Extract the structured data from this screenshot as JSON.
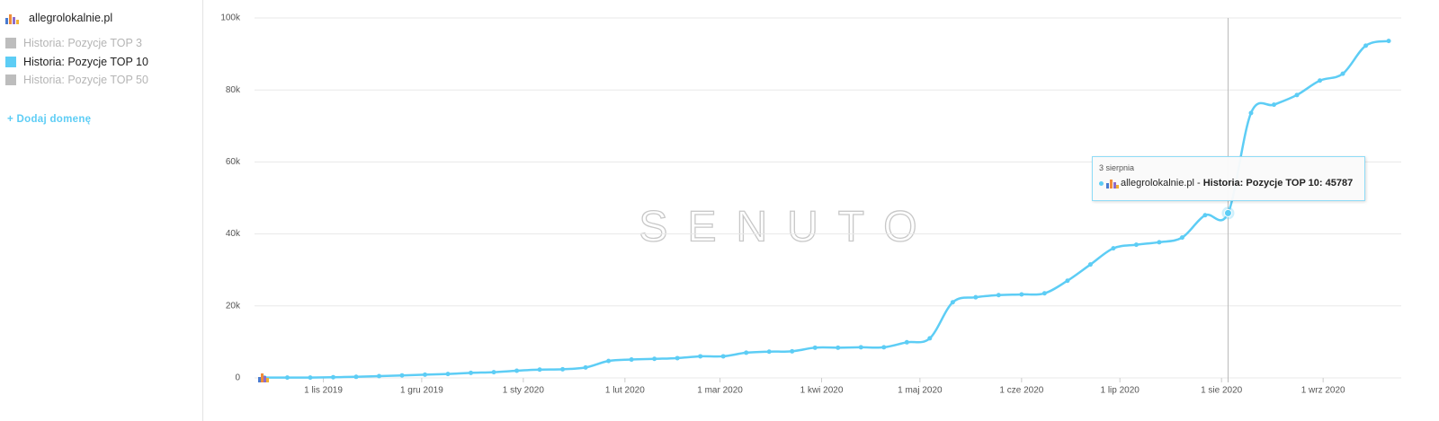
{
  "sidebar": {
    "domain": "allegrolokalnie.pl",
    "legend_top3": "Historia: Pozycje TOP 3",
    "legend_top50": "Historia: Pozycje TOP 50",
    "add_domain": "+ Dodaj domenę"
  },
  "watermark": "SENUTO",
  "tooltip": {
    "date": "3 sierpnia",
    "prefix": "allegrolokalnie.pl - ",
    "bold": "Historia: Pozycje TOP 10: 45787"
  },
  "chart_data": {
    "type": "line",
    "x": [
      "2019-10-14",
      "2019-10-21",
      "2019-10-28",
      "2019-11-04",
      "2019-11-11",
      "2019-11-18",
      "2019-11-25",
      "2019-12-02",
      "2019-12-09",
      "2019-12-16",
      "2019-12-23",
      "2019-12-30",
      "2020-01-06",
      "2020-01-13",
      "2020-01-20",
      "2020-01-27",
      "2020-02-03",
      "2020-02-10",
      "2020-02-17",
      "2020-02-24",
      "2020-03-02",
      "2020-03-09",
      "2020-03-16",
      "2020-03-23",
      "2020-03-30",
      "2020-04-06",
      "2020-04-13",
      "2020-04-20",
      "2020-04-27",
      "2020-05-04",
      "2020-05-11",
      "2020-05-18",
      "2020-05-25",
      "2020-06-01",
      "2020-06-08",
      "2020-06-15",
      "2020-06-22",
      "2020-06-29",
      "2020-07-06",
      "2020-07-13",
      "2020-07-20",
      "2020-07-27",
      "2020-08-03",
      "2020-08-10",
      "2020-08-17",
      "2020-08-24",
      "2020-08-31",
      "2020-09-07",
      "2020-09-14",
      "2020-09-21"
    ],
    "series": [
      {
        "name": "Historia: Pozycje TOP 10",
        "color": "#5dcdf5",
        "values": [
          100,
          100,
          100,
          200,
          300,
          500,
          700,
          900,
          1100,
          1400,
          1600,
          2000,
          2300,
          2400,
          2900,
          4700,
          5100,
          5300,
          5500,
          6000,
          6000,
          7000,
          7300,
          7400,
          8400,
          8400,
          8500,
          8500,
          9900,
          11000,
          21000,
          22400,
          23000,
          23200,
          23500,
          27000,
          31500,
          36000,
          37000,
          37700,
          39000,
          45200,
          45787,
          73600,
          75900,
          78600,
          82600,
          84500,
          92300,
          93600
        ]
      }
    ],
    "xlim": [
      "2019-10-11",
      "2020-09-24"
    ],
    "xticks": [
      {
        "value": "2019-11-01",
        "label": "1 lis 2019"
      },
      {
        "value": "2019-12-01",
        "label": "1 gru 2019"
      },
      {
        "value": "2020-01-01",
        "label": "1 sty 2020"
      },
      {
        "value": "2020-02-01",
        "label": "1 lut 2020"
      },
      {
        "value": "2020-03-01",
        "label": "1 mar 2020"
      },
      {
        "value": "2020-04-01",
        "label": "1 kwi 2020"
      },
      {
        "value": "2020-05-01",
        "label": "1 maj 2020"
      },
      {
        "value": "2020-06-01",
        "label": "1 cze 2020"
      },
      {
        "value": "2020-07-01",
        "label": "1 lip 2020"
      },
      {
        "value": "2020-08-01",
        "label": "1 sie 2020"
      },
      {
        "value": "2020-09-01",
        "label": "1 wrz 2020"
      }
    ],
    "ylim": [
      0,
      100000
    ],
    "yticks": [
      0,
      {
        "value": 20000,
        "label": "20k"
      },
      {
        "value": 40000,
        "label": "40k"
      },
      {
        "value": 60000,
        "label": "60k"
      },
      {
        "value": 80000,
        "label": "80k"
      },
      {
        "value": 100000,
        "label": "100k"
      }
    ],
    "grid": true
  }
}
